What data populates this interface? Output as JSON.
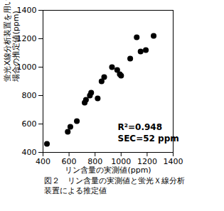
{
  "chart_data": {
    "type": "scatter",
    "title": "図２　リン含量の実測値と蛍光Ｘ線分析装置による推定値",
    "x_label": "リン含量の実測値(ppm)",
    "y_label": "蛍光X線分析装置を用いた\n場合の推定値(ppm)",
    "annotations": [
      "R²=0.948",
      "SEC=52 ppm"
    ],
    "x": [
      430,
      590,
      610,
      660,
      720,
      730,
      760,
      770,
      820,
      850,
      870,
      930,
      970,
      990,
      1000,
      1070,
      1120,
      1150,
      1190,
      1250
    ],
    "values": [
      460,
      545,
      580,
      620,
      750,
      770,
      800,
      820,
      780,
      900,
      930,
      1000,
      980,
      950,
      940,
      1060,
      1210,
      1110,
      1120,
      1220
    ],
    "color": "#000000",
    "marker": "circle",
    "xlim": [
      400,
      1400
    ],
    "xticks": [
      400,
      600,
      800,
      1000,
      1200,
      1400
    ],
    "ylim": [
      400,
      1400
    ],
    "yticks": [
      400,
      600,
      800,
      1000,
      1200,
      1400
    ],
    "grid": false
  }
}
